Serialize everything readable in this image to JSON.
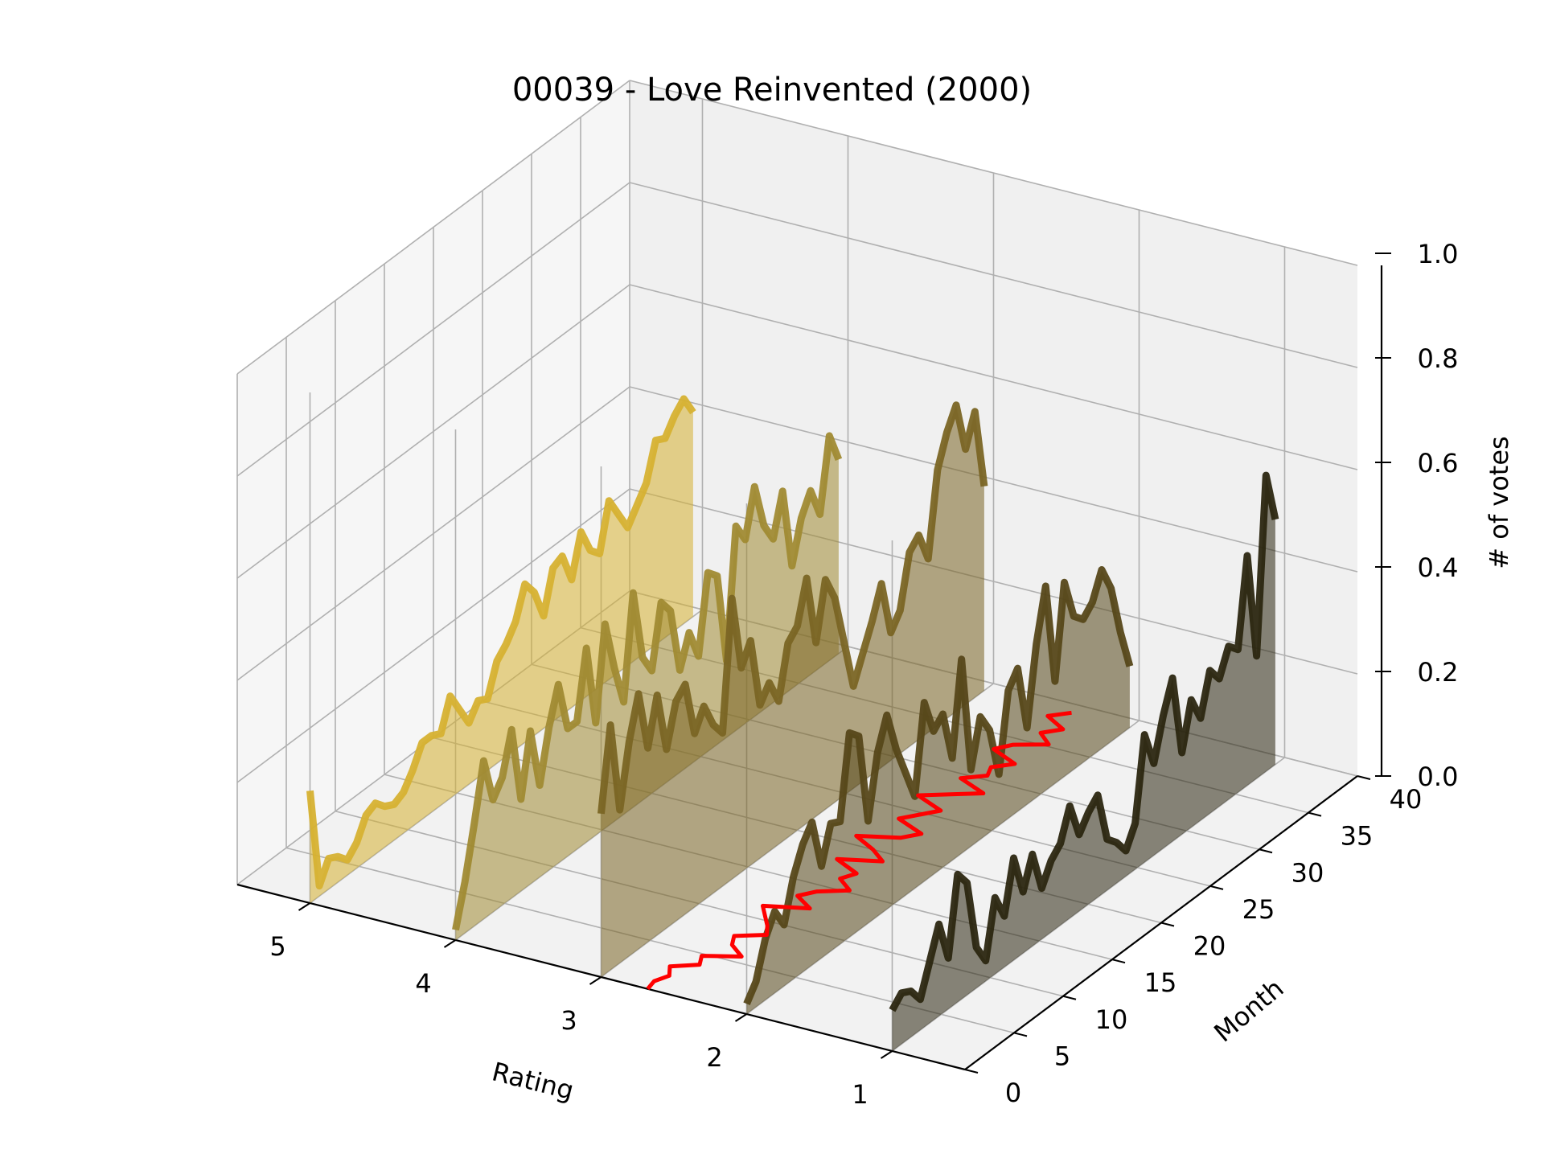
{
  "chart_data": {
    "type": "line",
    "projection": "3d",
    "title": "00039 - Love Reinvented (2000)",
    "xlabel": "Rating",
    "ylabel": "Month",
    "zlabel": "# of votes",
    "xlim": [
      0.5,
      5.5
    ],
    "ylim": [
      0,
      40
    ],
    "zlim": [
      0,
      1
    ],
    "x_ticks": [
      "1",
      "2",
      "3",
      "4",
      "5"
    ],
    "y_ticks": [
      "0",
      "5",
      "10",
      "15",
      "20",
      "25",
      "30",
      "35",
      "40"
    ],
    "z_ticks": [
      "0.0",
      "0.2",
      "0.4",
      "0.6",
      "0.8",
      "1.0"
    ],
    "grid": true,
    "filled_under_lines": true,
    "series": [
      {
        "rating": 5,
        "color": "#d6b132",
        "values": [
          0.22,
          0.02,
          0.06,
          0.05,
          0.03,
          0.05,
          0.09,
          0.1,
          0.08,
          0.07,
          0.08,
          0.11,
          0.15,
          0.15,
          0.14,
          0.2,
          0.16,
          0.12,
          0.15,
          0.14,
          0.2,
          0.22,
          0.25,
          0.31,
          0.28,
          0.22,
          0.3,
          0.31,
          0.25,
          0.33,
          0.28,
          0.26,
          0.35,
          0.31,
          0.27,
          0.3,
          0.33,
          0.4,
          0.39,
          0.42,
          0.44,
          0.4
        ]
      },
      {
        "rating": 4,
        "color": "#a08a33",
        "values": [
          0.02,
          0.1,
          0.2,
          0.31,
          0.22,
          0.25,
          0.33,
          0.18,
          0.3,
          0.18,
          0.28,
          0.35,
          0.25,
          0.25,
          0.38,
          0.22,
          0.4,
          0.3,
          0.22,
          0.42,
          0.28,
          0.24,
          0.36,
          0.33,
          0.2,
          0.26,
          0.2,
          0.35,
          0.33,
          0.15,
          0.4,
          0.36,
          0.45,
          0.36,
          0.32,
          0.4,
          0.24,
          0.32,
          0.36,
          0.3,
          0.44,
          0.38
        ]
      },
      {
        "rating": 3,
        "color": "#7a6524",
        "values": [
          0.32,
          0.48,
          0.3,
          0.42,
          0.5,
          0.38,
          0.47,
          0.35,
          0.43,
          0.45,
          0.34,
          0.38,
          0.33,
          0.3,
          0.55,
          0.4,
          0.44,
          0.3,
          0.33,
          0.28,
          0.38,
          0.4,
          0.48,
          0.34,
          0.45,
          0.4,
          0.3,
          0.2,
          0.25,
          0.3,
          0.36,
          0.25,
          0.28,
          0.38,
          0.4,
          0.34,
          0.5,
          0.56,
          0.6,
          0.5,
          0.56,
          0.4
        ]
      },
      {
        "rating": 2,
        "color": "#564719",
        "values": [
          0.02,
          0.05,
          0.12,
          0.16,
          0.12,
          0.2,
          0.25,
          0.28,
          0.18,
          0.25,
          0.24,
          0.4,
          0.38,
          0.2,
          0.32,
          0.38,
          0.3,
          0.24,
          0.18,
          0.35,
          0.28,
          0.3,
          0.2,
          0.38,
          0.15,
          0.24,
          0.2,
          0.1,
          0.25,
          0.28,
          0.15,
          0.3,
          0.4,
          0.2,
          0.38,
          0.3,
          0.28,
          0.3,
          0.35,
          0.3,
          0.2,
          0.12
        ]
      },
      {
        "rating": 1,
        "color": "#2b2610",
        "values": [
          0.08,
          0.1,
          0.09,
          0.06,
          0.12,
          0.18,
          0.1,
          0.25,
          0.22,
          0.08,
          0.04,
          0.15,
          0.1,
          0.2,
          0.12,
          0.18,
          0.1,
          0.14,
          0.16,
          0.22,
          0.15,
          0.18,
          0.2,
          0.1,
          0.08,
          0.05,
          0.09,
          0.25,
          0.18,
          0.26,
          0.32,
          0.16,
          0.25,
          0.2,
          0.28,
          0.25,
          0.3,
          0.28,
          0.45,
          0.24,
          0.58,
          0.48
        ]
      }
    ],
    "mean_rating_line": {
      "color": "#ff0000",
      "values": [
        2.68,
        2.7,
        2.66,
        2.72,
        2.58,
        2.63,
        2.42,
        2.55,
        2.6,
        2.44,
        2.5,
        2.58,
        2.66,
        2.4,
        2.55,
        2.48,
        2.32,
        2.45,
        2.4,
        2.6,
        2.35,
        2.48,
        2.66,
        2.42,
        2.34,
        2.56,
        2.48,
        2.4,
        2.62,
        2.46,
        2.3,
        2.52,
        2.4,
        2.44,
        2.34,
        2.55,
        2.48,
        2.3,
        2.42,
        2.33,
        2.5,
        2.4
      ]
    }
  }
}
